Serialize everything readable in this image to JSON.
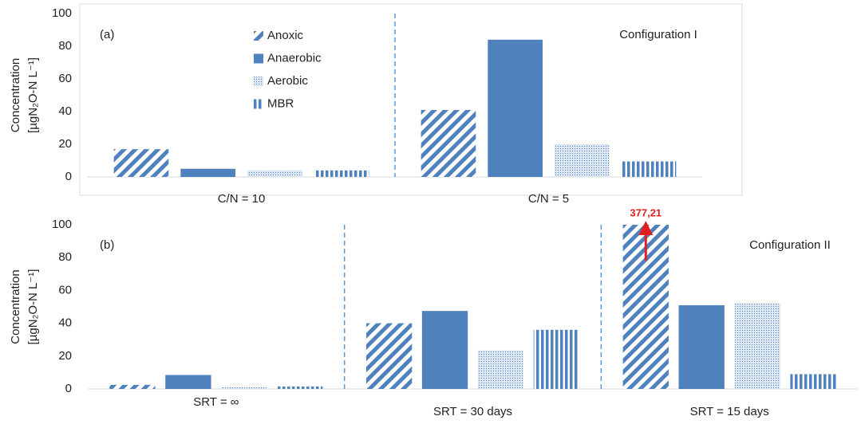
{
  "chart_data": [
    {
      "type": "bar",
      "annotation": "(a)",
      "config_label": "Configuration I",
      "ylabel": "Concentration",
      "ylabel_unit": "[µgN₂O-N L⁻¹]",
      "categories": [
        "C/N = 10",
        "C/N = 5"
      ],
      "series": [
        {
          "name": "Anoxic",
          "color": "#4f81bd",
          "pattern": "diagonal",
          "values": [
            17,
            41
          ]
        },
        {
          "name": "Anaerobic",
          "color": "#4f81bd",
          "pattern": "solid",
          "values": [
            5,
            84
          ]
        },
        {
          "name": "Aerobic",
          "color": "#4f81bd",
          "pattern": "dots",
          "values": [
            4,
            20
          ]
        },
        {
          "name": "MBR",
          "color": "#4f81bd",
          "pattern": "vertical",
          "values": [
            4,
            9.5
          ]
        }
      ],
      "ylim": [
        0,
        100
      ],
      "yticks": [
        0,
        20,
        40,
        60,
        80,
        100
      ]
    },
    {
      "type": "bar",
      "annotation": "(b)",
      "config_label": "Configuration II",
      "ylabel": "Concentration",
      "ylabel_unit": "[µgN₂O-N L⁻¹]",
      "categories": [
        "SRT = ∞",
        "SRT = 30 days",
        "SRT = 15 days"
      ],
      "series": [
        {
          "name": "Anoxic",
          "color": "#4f81bd",
          "pattern": "diagonal",
          "values": [
            2.5,
            40,
            377.21
          ],
          "value_labels": [
            null,
            null,
            "377,21"
          ]
        },
        {
          "name": "Anaerobic",
          "color": "#4f81bd",
          "pattern": "solid",
          "values": [
            8.5,
            47.5,
            51
          ]
        },
        {
          "name": "Aerobic",
          "color": "#4f81bd",
          "pattern": "dots",
          "values": [
            1,
            23.5,
            52
          ]
        },
        {
          "name": "MBR",
          "color": "#4f81bd",
          "pattern": "vertical",
          "values": [
            1.5,
            36,
            9
          ]
        }
      ],
      "ylim": [
        0,
        100
      ],
      "yticks": [
        0,
        20,
        40,
        60,
        80,
        100
      ]
    }
  ]
}
